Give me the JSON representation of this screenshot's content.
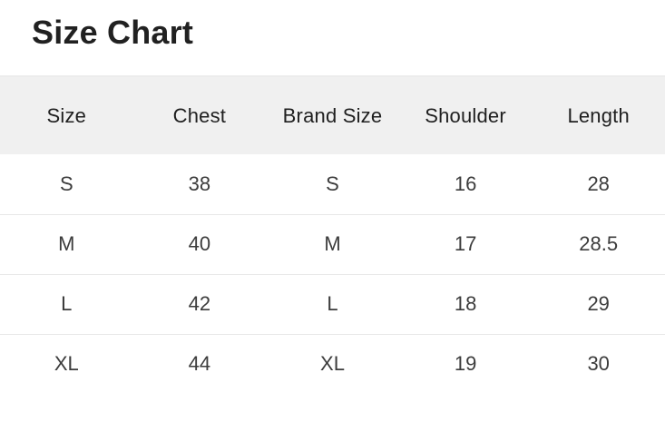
{
  "page": {
    "title": "Size Chart",
    "background_color": "#ffffff"
  },
  "table": {
    "headers": [
      "Size",
      "Chest",
      "Brand Size",
      "Shoulder",
      "Length"
    ],
    "rows": [
      [
        "S",
        "38",
        "S",
        "16",
        "28"
      ],
      [
        "M",
        "40",
        "M",
        "17",
        "28.5"
      ],
      [
        "L",
        "42",
        "L",
        "18",
        "29"
      ],
      [
        "XL",
        "44",
        "XL",
        "19",
        "30"
      ]
    ],
    "header_bg_color": "#f0f0f0",
    "divider_color": "#e8e8e8",
    "header_text_color": "#1f1f1f",
    "body_text_color": "#3c3c3c"
  },
  "chart_data": {
    "type": "table",
    "title": "Size Chart",
    "columns": [
      "Size",
      "Chest",
      "Brand Size",
      "Shoulder",
      "Length"
    ],
    "rows": [
      [
        "S",
        38,
        "S",
        16,
        28
      ],
      [
        "M",
        40,
        "M",
        17,
        28.5
      ],
      [
        "L",
        42,
        "L",
        18,
        29
      ],
      [
        "XL",
        44,
        "XL",
        19,
        30
      ]
    ]
  }
}
